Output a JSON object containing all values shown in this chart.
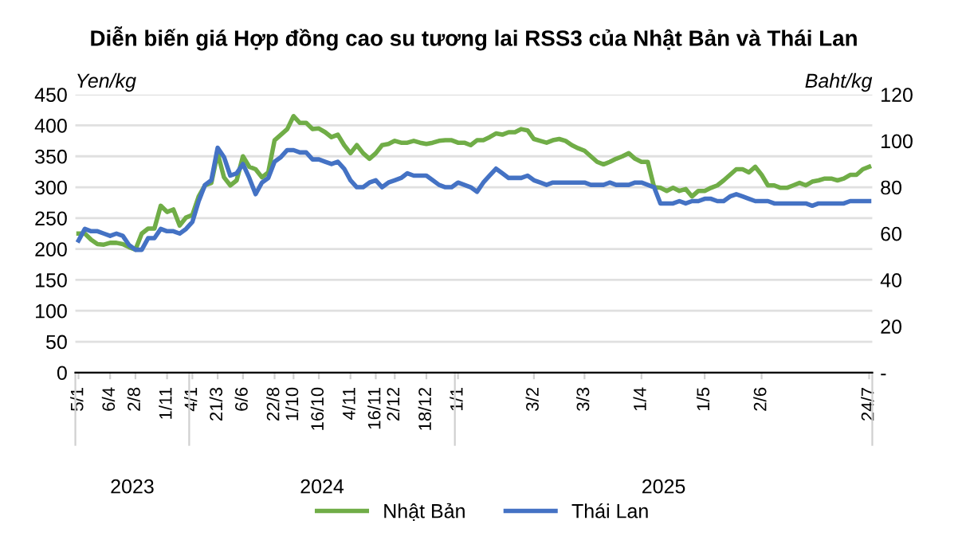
{
  "chart_data": {
    "type": "line",
    "title": "Diễn biến giá Hợp đồng cao su tương lai RSS3 của Nhật Bản và Thái Lan",
    "ylabel": "Yen/kg",
    "y2label": "Baht/kg",
    "categories": [
      "5/1",
      null,
      null,
      null,
      null,
      "6/4",
      null,
      null,
      null,
      "2/8",
      null,
      null,
      null,
      null,
      "1/11",
      null,
      null,
      null,
      "4/1",
      null,
      null,
      null,
      "21/3",
      null,
      null,
      null,
      "6/6",
      null,
      null,
      null,
      null,
      "22/8",
      null,
      null,
      "1/10",
      null,
      null,
      null,
      "16/10",
      null,
      null,
      null,
      null,
      "4/11",
      null,
      null,
      null,
      "16/11",
      null,
      null,
      "2/12",
      null,
      null,
      null,
      null,
      "18/12",
      null,
      null,
      null,
      null,
      "1/1",
      null,
      null,
      null,
      null,
      null,
      null,
      null,
      null,
      null,
      null,
      null,
      "3/2",
      null,
      null,
      null,
      null,
      null,
      null,
      null,
      "3/3",
      null,
      null,
      null,
      null,
      null,
      null,
      null,
      null,
      "1/4",
      null,
      null,
      null,
      null,
      null,
      null,
      null,
      null,
      null,
      "1/5",
      null,
      null,
      null,
      null,
      null,
      null,
      null,
      null,
      "2/6",
      null,
      null,
      null,
      null,
      null,
      null,
      null,
      null,
      null,
      null,
      null,
      null,
      null,
      null,
      null,
      null,
      "24/7"
    ],
    "series": [
      {
        "name": "Nhật Bản",
        "color": "#70ad47",
        "values": [
          225,
          225,
          215,
          208,
          207,
          210,
          210,
          208,
          203,
          199,
          225,
          233,
          233,
          270,
          260,
          264,
          238,
          251,
          255,
          285,
          303,
          307,
          355,
          316,
          303,
          311,
          350,
          333,
          329,
          316,
          324,
          376,
          385,
          394,
          415,
          404,
          404,
          394,
          395,
          389,
          381,
          385,
          368,
          355,
          368,
          355,
          346,
          355,
          368,
          370,
          375,
          372,
          372,
          375,
          372,
          370,
          372,
          375,
          376,
          376,
          372,
          372,
          368,
          376,
          376,
          381,
          387,
          385,
          389,
          389,
          394,
          392,
          378,
          375,
          372,
          376,
          378,
          375,
          368,
          363,
          359,
          350,
          341,
          337,
          341,
          346,
          350,
          355,
          346,
          341,
          341,
          300,
          299,
          294,
          299,
          294,
          297,
          285,
          294,
          294,
          299,
          303,
          311,
          320,
          329,
          329,
          324,
          333,
          320,
          303,
          303,
          299,
          299,
          303,
          307,
          303,
          309,
          311,
          314,
          314,
          311,
          314,
          320,
          320,
          329,
          333
        ]
      },
      {
        "name": "Thái Lan",
        "color": "#4472c4",
        "axis": "y2",
        "values": [
          57,
          62,
          61,
          61,
          60,
          59,
          60,
          59,
          55,
          53,
          53,
          58,
          58,
          62,
          61,
          61,
          60,
          62,
          65,
          74,
          81,
          83,
          97,
          93,
          85,
          86,
          90,
          84,
          77,
          82,
          84,
          91,
          93,
          96,
          96,
          95,
          95,
          92,
          92,
          91,
          90,
          91,
          88,
          83,
          80,
          80,
          82,
          83,
          80,
          82,
          83,
          84,
          86,
          85,
          85,
          85,
          83,
          81,
          80,
          80,
          82,
          81,
          80,
          78,
          82,
          85,
          88,
          86,
          84,
          84,
          84,
          85,
          83,
          82,
          81,
          82,
          82,
          82,
          82,
          82,
          82,
          81,
          81,
          81,
          82,
          81,
          81,
          81,
          82,
          82,
          81,
          80,
          73,
          73,
          73,
          74,
          73,
          74,
          74,
          75,
          75,
          74,
          74,
          76,
          77,
          76,
          75,
          74,
          74,
          74,
          73,
          73,
          73,
          73,
          73,
          73,
          72,
          73,
          73,
          73,
          73,
          73,
          74,
          74,
          74,
          74
        ]
      }
    ],
    "ylim": [
      0,
      450
    ],
    "yticks": [
      0,
      50,
      100,
      150,
      200,
      250,
      300,
      350,
      400,
      450
    ],
    "y2lim": [
      0,
      120
    ],
    "y2ticks": [
      {
        "value": 0,
        "label": "-"
      },
      20,
      40,
      60,
      80,
      100,
      120
    ],
    "annotations": [
      "2023",
      "2024",
      "2025"
    ],
    "grid": "y",
    "legend": "bottom"
  }
}
